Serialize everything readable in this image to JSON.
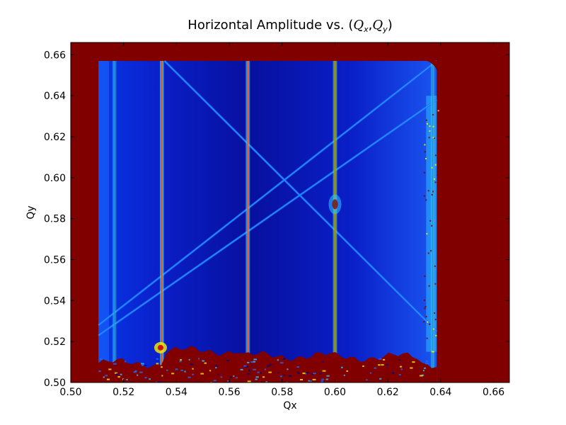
{
  "chart_data": {
    "type": "heatmap",
    "title": "Horizontal Amplitude vs. (Qx,Qy)",
    "title_text": "Horizontal Amplitude vs. ",
    "title_math": {
      "open": "(",
      "q1": "Q",
      "sub1": "x",
      "comma": ",",
      "q2": "Q",
      "sub2": "y",
      "close": ")"
    },
    "xlabel": "Qx",
    "ylabel": "Qy",
    "xlim": [
      0.5,
      0.666
    ],
    "ylim": [
      0.5,
      0.666
    ],
    "x_ticks": [
      0.5,
      0.52,
      0.54,
      0.56,
      0.58,
      0.6,
      0.62,
      0.64,
      0.66
    ],
    "y_ticks": [
      0.5,
      0.52,
      0.54,
      0.56,
      0.58,
      0.6,
      0.62,
      0.64,
      0.66
    ],
    "x_tick_labels": [
      "0.50",
      "0.52",
      "0.54",
      "0.56",
      "0.58",
      "0.60",
      "0.62",
      "0.64",
      "0.66"
    ],
    "y_tick_labels": [
      "0.50",
      "0.52",
      "0.54",
      "0.56",
      "0.58",
      "0.60",
      "0.62",
      "0.64",
      "0.66"
    ],
    "colormap": "jet",
    "colors": {
      "saturated": "#800000",
      "background_blue": "#00007e",
      "field_blue": "#0a1fd8",
      "bright_blue": "#1e6bff",
      "cyan": "#2fc6ff",
      "yellow": "#f6f000",
      "red": "#d00000"
    },
    "data_region": {
      "qx": [
        0.5105,
        0.6385
      ],
      "qy": [
        0.5,
        0.657
      ]
    },
    "vertical_resonances_qx": [
      0.5165,
      0.5345,
      0.567,
      0.6,
      0.637
    ],
    "diagonal_resonances": [
      {
        "from": [
          0.6385,
          0.657
        ],
        "to": [
          0.5105,
          0.528
        ]
      },
      {
        "from": [
          0.5355,
          0.657
        ],
        "to": [
          0.6385,
          0.525
        ]
      },
      {
        "from": [
          0.5105,
          0.523
        ],
        "to": [
          0.6385,
          0.638
        ]
      }
    ],
    "intersection_hotspot": [
      0.6,
      0.587
    ]
  }
}
